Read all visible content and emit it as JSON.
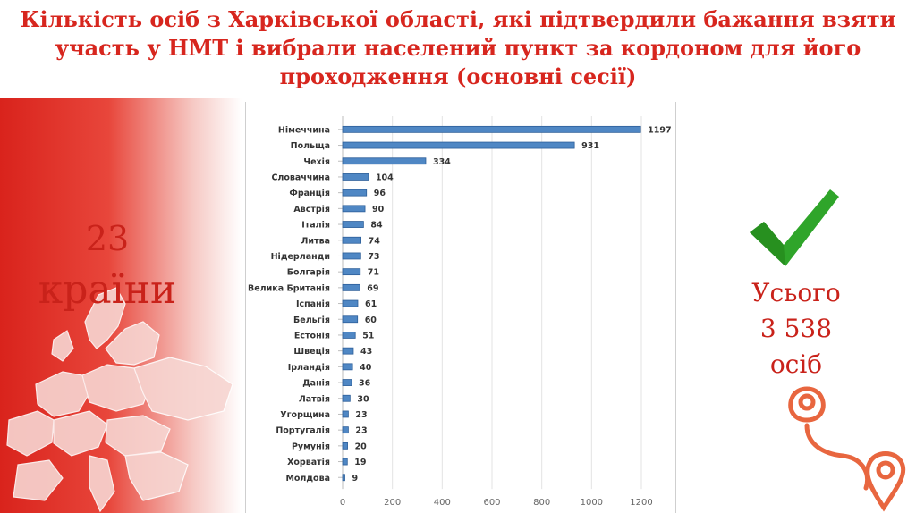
{
  "title": "Кількість осіб з Харківської області, які підтвердили бажання взяти участь у НМТ і вибрали населений пункт за кордоном для його проходження (основні сесії)",
  "left_stat": {
    "number": "23",
    "label": "країни"
  },
  "right_stat": {
    "label": "Усього",
    "number": "3 538",
    "unit": "осіб"
  },
  "colors": {
    "accent": "#d7261e",
    "bar": "#4f87c4",
    "check": "#2fa52a",
    "pin": "#e8663f"
  },
  "icons": [
    "europe-map-icon",
    "checkmark-icon",
    "map-pin-icon"
  ],
  "chart_data": {
    "type": "bar",
    "orientation": "horizontal",
    "categories": [
      "Німеччина",
      "Польща",
      "Чехія",
      "Словаччина",
      "Франція",
      "Австрія",
      "Італія",
      "Литва",
      "Нідерланди",
      "Болгарія",
      "Велика Британія",
      "Іспанія",
      "Бельгія",
      "Естонія",
      "Швеція",
      "Ірландія",
      "Данія",
      "Латвія",
      "Угорщина",
      "Португалія",
      "Румунія",
      "Хорватія",
      "Молдова"
    ],
    "values": [
      1197,
      931,
      334,
      104,
      96,
      90,
      84,
      74,
      73,
      71,
      69,
      61,
      60,
      51,
      43,
      40,
      36,
      30,
      23,
      23,
      20,
      19,
      9
    ],
    "data_labels": [
      "1197",
      "931",
      "334",
      "104",
      "96",
      "90",
      "84",
      "74",
      "73",
      "71",
      "69",
      "61",
      "60",
      "51",
      "43",
      "40",
      "36",
      "30",
      "23",
      "23",
      "20",
      "19",
      "9"
    ],
    "xlim": [
      0,
      1200
    ],
    "x_ticks": [
      "0",
      "200",
      "400",
      "600",
      "800",
      "1000",
      "1200"
    ],
    "grid": true
  }
}
